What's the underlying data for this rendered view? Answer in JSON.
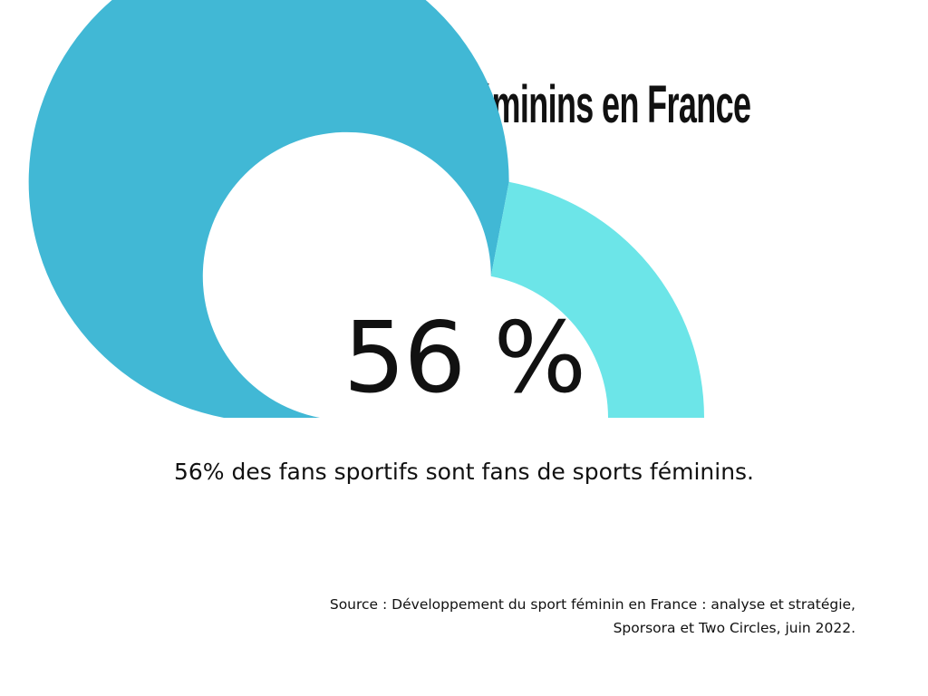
{
  "title": "Les fans de sports féminins en France",
  "chart_data": {
    "type": "gauge",
    "value": 56,
    "max": 100,
    "value_label": "56 %",
    "caption": "56% des fans sportifs sont fans de sports féminins.",
    "colors": {
      "filled": "#41b8d5",
      "remaining": "#6ce5e8"
    }
  },
  "source": {
    "line1": "Source : Développement du sport féminin en France : analyse et stratégie,",
    "line2": "Sporsora et Two Circles, juin 2022."
  }
}
